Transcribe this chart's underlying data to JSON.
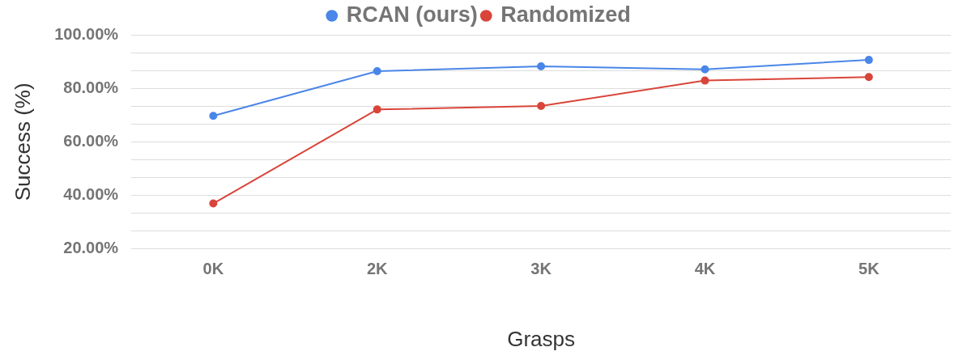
{
  "chart_data": {
    "type": "line",
    "xlabel": "Grasps",
    "ylabel": "Success (%)",
    "categories": [
      "0K",
      "2K",
      "3K",
      "4K",
      "5K"
    ],
    "series": [
      {
        "name": "RCAN (ours)",
        "color": "#4a86e8",
        "values": [
          69.7,
          86.4,
          88.2,
          87.1,
          90.6
        ]
      },
      {
        "name": "Randomized",
        "color": "#d9453a",
        "values": [
          37.0,
          72.1,
          73.4,
          82.9,
          84.2
        ]
      }
    ],
    "ylim": [
      20,
      100
    ],
    "yticks": [
      {
        "value": 20,
        "label": "20.00%"
      },
      {
        "value": 26.67,
        "label": null
      },
      {
        "value": 33.33,
        "label": null
      },
      {
        "value": 40,
        "label": "40.00%"
      },
      {
        "value": 46.67,
        "label": null
      },
      {
        "value": 53.33,
        "label": null
      },
      {
        "value": 60,
        "label": "60.00%"
      },
      {
        "value": 66.67,
        "label": null
      },
      {
        "value": 73.33,
        "label": null
      },
      {
        "value": 80,
        "label": "80.00%"
      },
      {
        "value": 86.67,
        "label": null
      },
      {
        "value": 93.33,
        "label": null
      },
      {
        "value": 100,
        "label": "100.00%"
      }
    ],
    "grid": "y",
    "legend": "top",
    "marker": "circle",
    "line_style": "solid"
  }
}
